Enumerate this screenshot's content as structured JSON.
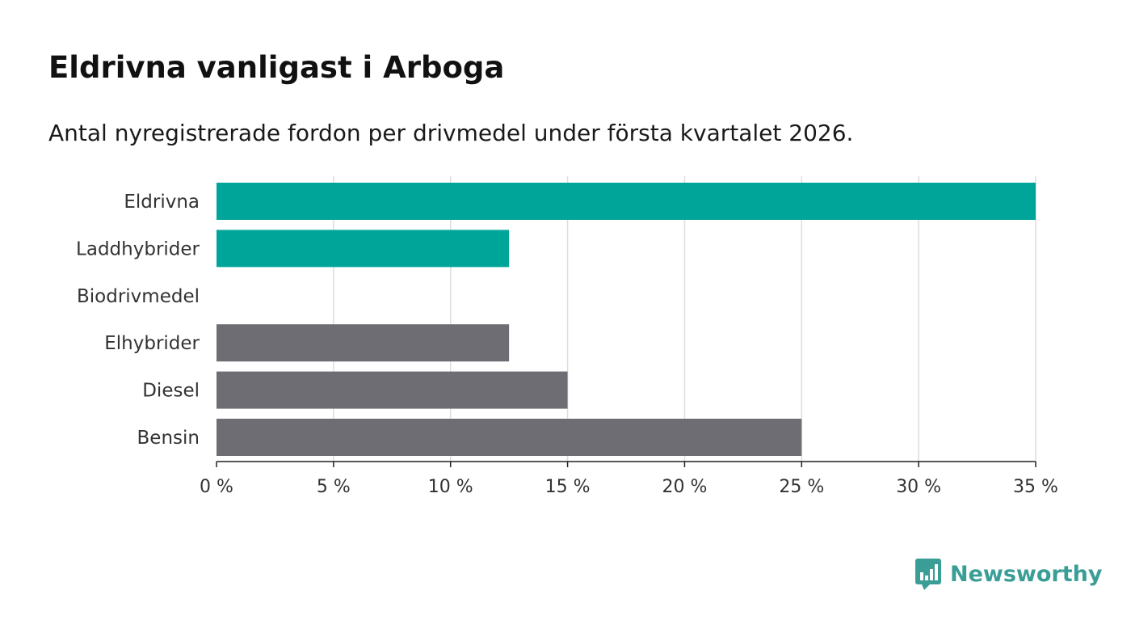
{
  "header": {
    "title": "Eldrivna vanligast i Arboga",
    "subtitle": "Antal nyregistrerade fordon per drivmedel under första kvartalet 2026."
  },
  "brand": {
    "name": "Newsworthy",
    "logo_icon": "bar-chart-speech-bubble-icon"
  },
  "colors": {
    "highlight": "#00a59a",
    "other": "#6e6d73",
    "grid": "#dddddd",
    "axis": "#222222"
  },
  "chart_data": {
    "type": "bar",
    "orientation": "horizontal",
    "title": "Eldrivna vanligast i Arboga",
    "subtitle": "Antal nyregistrerade fordon per drivmedel under första kvartalet 2026.",
    "xlabel": "",
    "ylabel": "",
    "categories": [
      "Eldrivna",
      "Laddhybrider",
      "Biodrivmedel",
      "Elhybrider",
      "Diesel",
      "Bensin"
    ],
    "values": [
      35,
      12.5,
      0,
      12.5,
      15,
      25
    ],
    "bar_colors": [
      "#00a59a",
      "#00a59a",
      "#00a59a",
      "#6e6d73",
      "#6e6d73",
      "#6e6d73"
    ],
    "unit": "%",
    "xlim": [
      0,
      35
    ],
    "xticks": [
      0,
      5,
      10,
      15,
      20,
      25,
      30,
      35
    ],
    "xtick_labels": [
      "0 %",
      "5 %",
      "10 %",
      "15 %",
      "20 %",
      "25 %",
      "30 %",
      "35 %"
    ],
    "grid": true,
    "legend": "none"
  }
}
